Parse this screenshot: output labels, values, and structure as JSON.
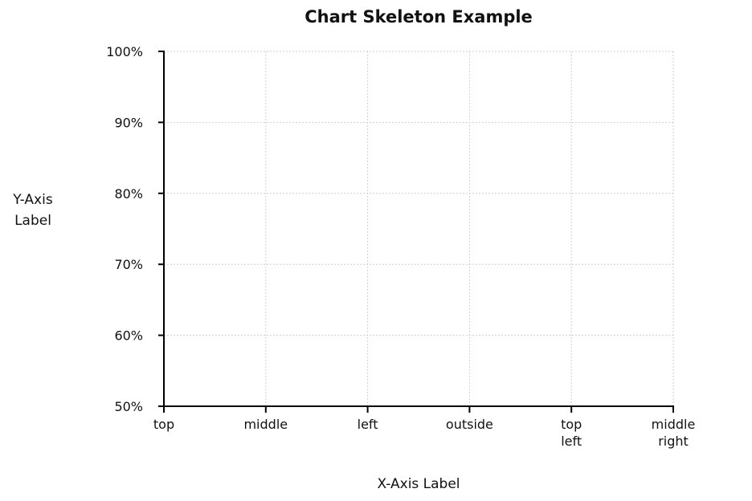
{
  "chart_data": {
    "type": "line",
    "title": "Chart Skeleton Example",
    "xlabel": [
      "X-Axis Label"
    ],
    "ylabel": [
      "Y-Axis",
      "Label"
    ],
    "categories": [
      [
        "top"
      ],
      [
        "middle"
      ],
      [
        "left"
      ],
      [
        "outside"
      ],
      [
        "top",
        "left"
      ],
      [
        "middle",
        "right"
      ]
    ],
    "y_ticks": [
      {
        "value": 50,
        "label": "50%"
      },
      {
        "value": 60,
        "label": "60%"
      },
      {
        "value": 70,
        "label": "70%"
      },
      {
        "value": 80,
        "label": "80%"
      },
      {
        "value": 90,
        "label": "90%"
      },
      {
        "value": 100,
        "label": "100%"
      }
    ],
    "ylim": [
      50,
      100
    ],
    "grid": true,
    "series": []
  }
}
